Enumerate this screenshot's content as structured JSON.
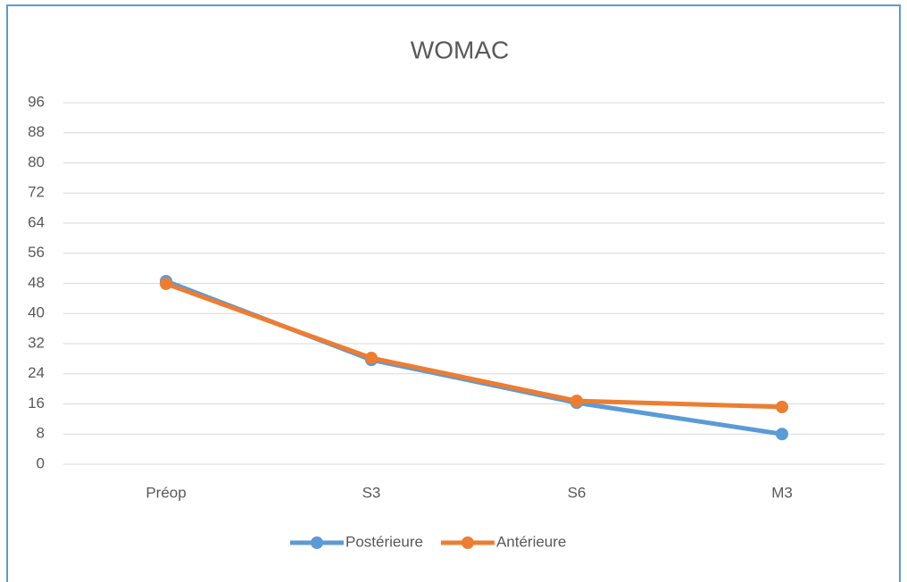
{
  "chart_data": {
    "type": "line",
    "title": "WOMAC",
    "categories": [
      "Préop",
      "S3",
      "S6",
      "M3"
    ],
    "series": [
      {
        "name": "Postérieure",
        "color": "#5b9bd5",
        "values": [
          48.6,
          27.7,
          16.3,
          8
        ]
      },
      {
        "name": "Antérieure",
        "color": "#ed7d31",
        "values": [
          47.9,
          28.2,
          16.8,
          15.2
        ]
      }
    ],
    "ylim": [
      0,
      96
    ],
    "yticks": [
      0,
      8,
      16,
      24,
      32,
      40,
      48,
      56,
      64,
      72,
      80,
      88,
      96
    ],
    "grid": true,
    "legend": "bottom"
  }
}
